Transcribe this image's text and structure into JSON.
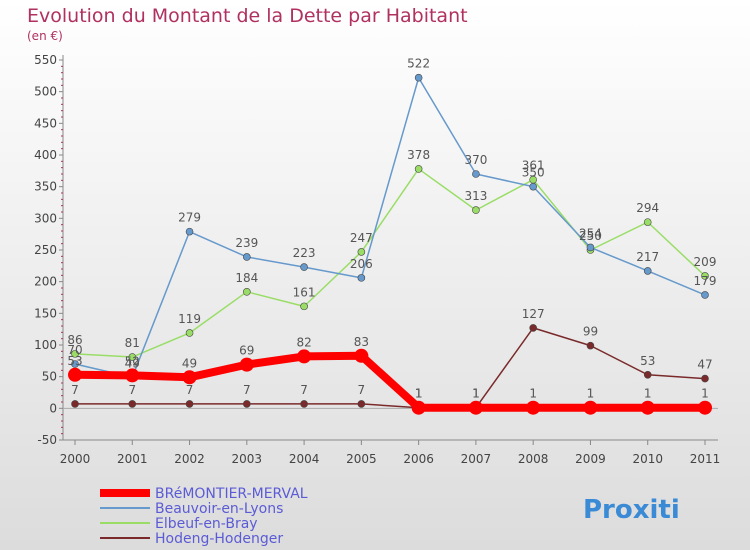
{
  "chart_data": {
    "type": "line",
    "title": "Evolution du Montant de la Dette par Habitant",
    "subtitle": "(en €)",
    "categories": [
      "2000",
      "2001",
      "2002",
      "2003",
      "2004",
      "2005",
      "2006",
      "2007",
      "2008",
      "2009",
      "2010",
      "2011"
    ],
    "ylim": [
      -50,
      550
    ],
    "yticks": [
      -50,
      0,
      50,
      100,
      150,
      200,
      250,
      300,
      350,
      400,
      450,
      500,
      550
    ],
    "grid": false,
    "legend_position": "bottom-left",
    "series": [
      {
        "name": "BRéMONTIER-MERVAL",
        "color": "#ff0000",
        "values": [
          53,
          52,
          49,
          69,
          82,
          83,
          1,
          1,
          1,
          1,
          1,
          1
        ]
      },
      {
        "name": "Beauvoir-en-Lyons",
        "color": "#6699cc",
        "values": [
          70,
          49,
          279,
          239,
          223,
          206,
          522,
          370,
          350,
          254,
          217,
          179
        ]
      },
      {
        "name": "Elbeuf-en-Bray",
        "color": "#99dd66",
        "values": [
          86,
          81,
          119,
          184,
          161,
          247,
          378,
          313,
          361,
          250,
          294,
          209
        ]
      },
      {
        "name": "Hodeng-Hodenger",
        "color": "#7a2a2a",
        "values": [
          7,
          7,
          7,
          7,
          7,
          7,
          1,
          1,
          127,
          99,
          53,
          47
        ]
      }
    ],
    "logo_text": "Proxiti"
  },
  "colors": {
    "title": "#b03060",
    "axis": "#888888",
    "legend_text": "#5b5bd6"
  }
}
